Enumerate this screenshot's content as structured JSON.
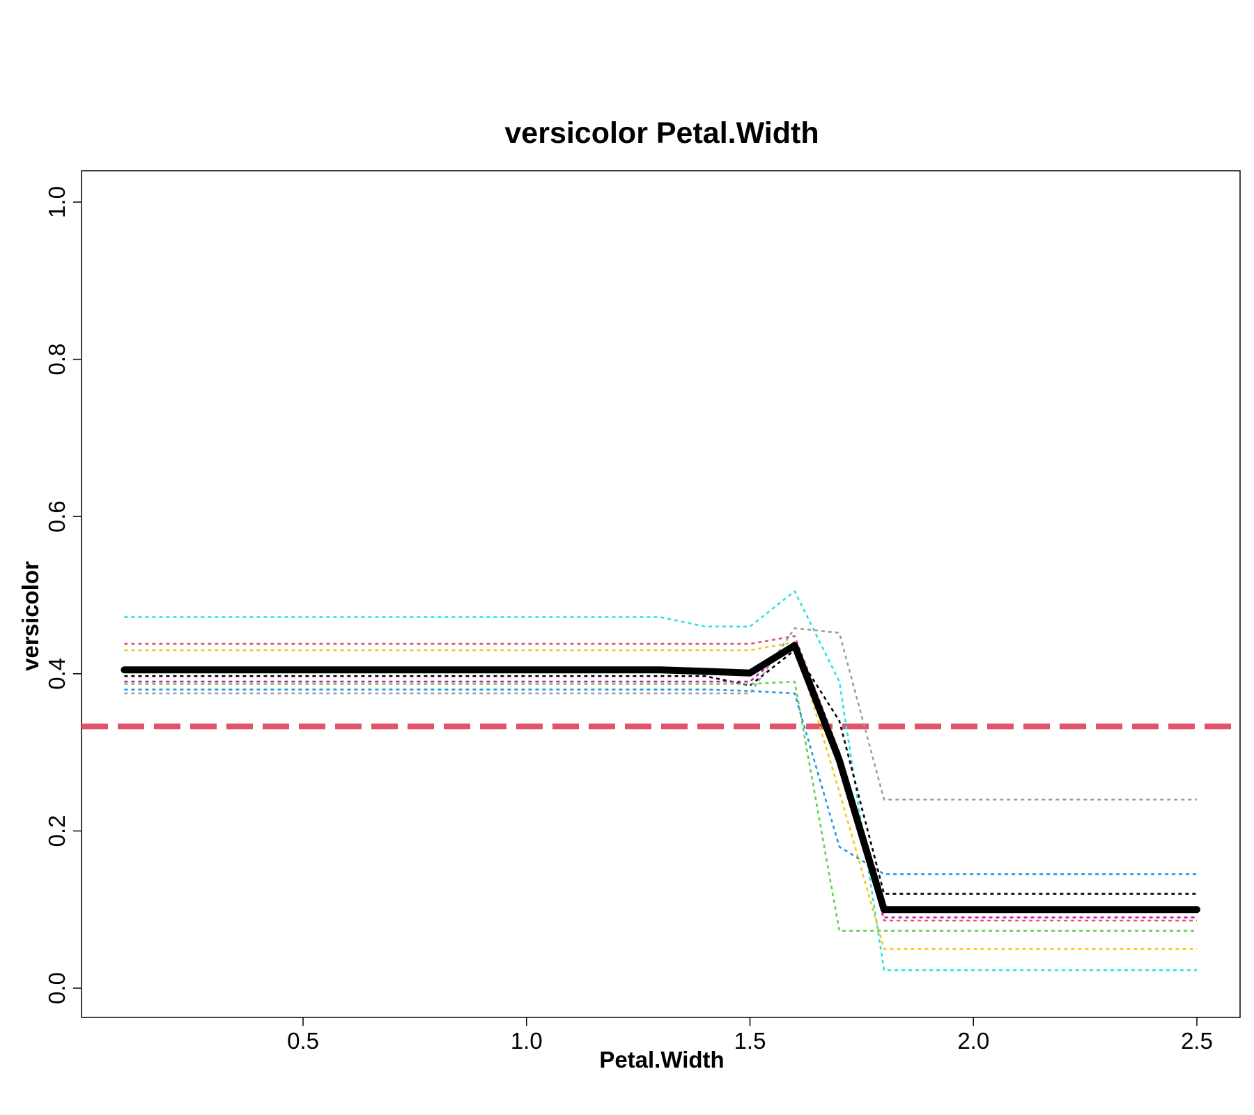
{
  "chart_data": {
    "type": "line",
    "title": "versicolor  Petal.Width",
    "xlabel": "Petal.Width",
    "ylabel": "versicolor",
    "xlim": [
      0.1,
      2.5
    ],
    "ylim": [
      0.0,
      1.0
    ],
    "x_ticks": [
      "0.5",
      "1.0",
      "1.5",
      "2.0",
      "2.5"
    ],
    "y_ticks": [
      "0.0",
      "0.2",
      "0.4",
      "0.6",
      "0.8",
      "1.0"
    ],
    "grid": false,
    "x": [
      0.1,
      1.3,
      1.4,
      1.5,
      1.6,
      1.7,
      1.8,
      2.5
    ],
    "reference_line": {
      "y": 0.333,
      "color": "#DF536B",
      "style": "dashed"
    },
    "series": [
      {
        "color": "#000000",
        "bold": true,
        "style": "solid",
        "values": [
          0.405,
          0.405,
          0.403,
          0.401,
          0.436,
          0.29,
          0.1,
          0.1
        ]
      },
      {
        "color": "#28E2E5",
        "style": "dotted",
        "values": [
          0.472,
          0.472,
          0.46,
          0.46,
          0.505,
          0.39,
          0.023,
          0.023
        ]
      },
      {
        "color": "#DF536B",
        "style": "dotted",
        "values": [
          0.438,
          0.438,
          0.438,
          0.438,
          0.448,
          0.3,
          0.086,
          0.086
        ]
      },
      {
        "color": "#F5C710",
        "style": "dotted",
        "values": [
          0.43,
          0.43,
          0.43,
          0.43,
          0.44,
          0.25,
          0.05,
          0.05
        ]
      },
      {
        "color": "#000000",
        "style": "dotted",
        "values": [
          0.397,
          0.397,
          0.397,
          0.385,
          0.43,
          0.34,
          0.12,
          0.12
        ]
      },
      {
        "color": "#CD0BBC",
        "style": "dotted",
        "values": [
          0.39,
          0.39,
          0.39,
          0.39,
          0.44,
          0.3,
          0.09,
          0.09
        ]
      },
      {
        "color": "#61D04F",
        "style": "dotted",
        "values": [
          0.387,
          0.387,
          0.387,
          0.387,
          0.39,
          0.073,
          0.073,
          0.073
        ]
      },
      {
        "color": "#2297E6",
        "style": "dotted",
        "values": [
          0.38,
          0.38,
          0.38,
          0.378,
          0.375,
          0.18,
          0.145,
          0.145
        ]
      },
      {
        "color": "#9E9E9E",
        "style": "dotted",
        "values": [
          0.375,
          0.375,
          0.375,
          0.375,
          0.458,
          0.452,
          0.24,
          0.24
        ]
      }
    ]
  }
}
